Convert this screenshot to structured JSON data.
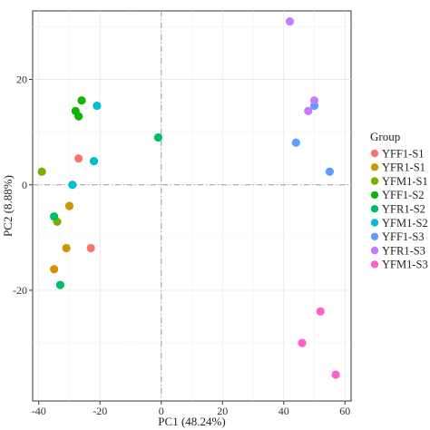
{
  "chart_data": {
    "type": "scatter",
    "xlabel": "PC1 (48.24%)",
    "ylabel": "PC2 (8.88%)",
    "xlim": [
      -42,
      62
    ],
    "ylim": [
      -41,
      33
    ],
    "x_ticks": [
      -40,
      -20,
      0,
      20,
      40,
      60
    ],
    "y_ticks": [
      -20,
      0,
      20
    ],
    "grid": true,
    "reference_lines": {
      "x": 0,
      "y": 0,
      "style": "dashdot"
    },
    "legend_title": "Group",
    "legend_position": "right",
    "series": [
      {
        "name": "YFF1-S1",
        "color": "#F8766D",
        "points": [
          [
            -27,
            5
          ],
          [
            -23,
            -12
          ]
        ]
      },
      {
        "name": "YFR1-S1",
        "color": "#CD9600",
        "points": [
          [
            -30,
            -4
          ],
          [
            -31,
            -12
          ],
          [
            -35,
            -16
          ]
        ]
      },
      {
        "name": "YFM1-S1",
        "color": "#7CAE00",
        "points": [
          [
            -39,
            2.5
          ],
          [
            -34,
            -7
          ]
        ]
      },
      {
        "name": "YFF1-S2",
        "color": "#0CB702",
        "points": [
          [
            -28,
            14
          ],
          [
            -26,
            16
          ],
          [
            -27,
            13
          ]
        ]
      },
      {
        "name": "YFR1-S2",
        "color": "#00BE67",
        "points": [
          [
            -1,
            9
          ],
          [
            -35,
            -6
          ],
          [
            -33,
            -19
          ]
        ]
      },
      {
        "name": "YFM1-S2",
        "color": "#00BBDA",
        "points": [
          [
            -21,
            15
          ],
          [
            -22,
            4.5
          ],
          [
            -29,
            0
          ]
        ]
      },
      {
        "name": "YFF1-S3",
        "color": "#619CFF",
        "points": [
          [
            44,
            8
          ],
          [
            50,
            15
          ],
          [
            55,
            2.5
          ]
        ]
      },
      {
        "name": "YFR1-S3",
        "color": "#C77CFF",
        "points": [
          [
            42,
            31
          ],
          [
            50,
            16
          ],
          [
            48,
            14
          ]
        ]
      },
      {
        "name": "YFM1-S3",
        "color": "#FF61CC",
        "points": [
          [
            52,
            -24
          ],
          [
            46,
            -30
          ],
          [
            57,
            -36
          ]
        ]
      }
    ]
  }
}
